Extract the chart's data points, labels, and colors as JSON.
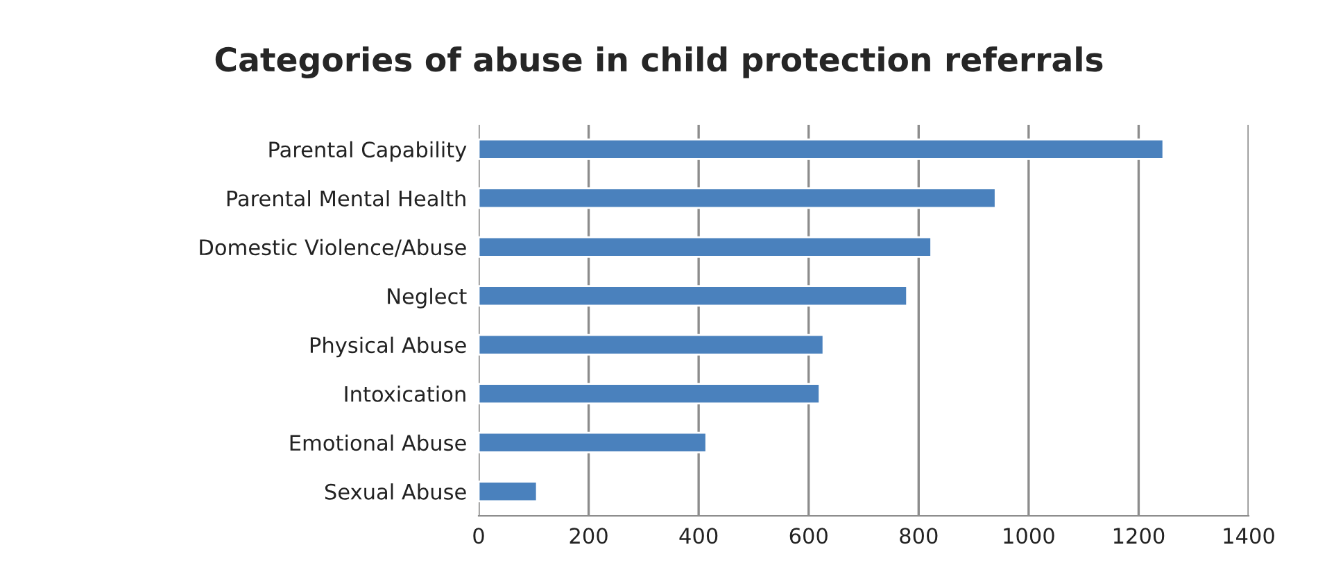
{
  "chart_data": {
    "type": "bar",
    "orientation": "horizontal",
    "title": "Categories of abuse in child protection referrals",
    "categories": [
      "Parental Capability",
      "Parental Mental Health",
      "Domestic Violence/Abuse",
      "Neglect",
      "Physical Abuse",
      "Intoxication",
      "Emotional Abuse",
      "Sexual Abuse"
    ],
    "values": [
      1245,
      940,
      823,
      779,
      627,
      620,
      414,
      106
    ],
    "color": "#4a81bd",
    "xlim": [
      0,
      1400
    ],
    "xticks": [
      0,
      200,
      400,
      600,
      800,
      1000,
      1200,
      1400
    ],
    "grid": "x",
    "legend": false
  }
}
